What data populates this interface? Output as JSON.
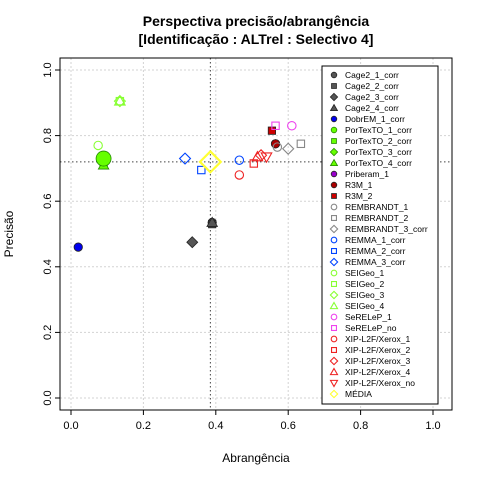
{
  "chart_data": {
    "type": "scatter",
    "title": "Perspectiva precisão/abrangência",
    "subtitle": "[Identificação : ALTrel : Selectivo 4]",
    "xlabel": "Abrangência",
    "ylabel": "Precisão",
    "xlim": [
      0,
      1
    ],
    "ylim": [
      0,
      1
    ],
    "xticks": [
      "0.0",
      "0.2",
      "0.4",
      "0.6",
      "0.8",
      "1.0"
    ],
    "yticks": [
      "0.0",
      "0.2",
      "0.4",
      "0.6",
      "0.8",
      "1.0"
    ],
    "grid": true,
    "legend_position": "right",
    "reference_lines": {
      "x": 0.385,
      "y": 0.72
    },
    "series": [
      {
        "name": "Cage2_1_corr",
        "shape": "circle",
        "color": "#555555",
        "filled": true,
        "x": 0.39,
        "y": 0.535
      },
      {
        "name": "Cage2_2_corr",
        "shape": "square",
        "color": "#555555",
        "filled": true,
        "x": 0.39,
        "y": 0.53
      },
      {
        "name": "Cage2_3_corr",
        "shape": "diamond",
        "color": "#555555",
        "filled": true,
        "x": 0.335,
        "y": 0.475
      },
      {
        "name": "Cage2_4_corr",
        "shape": "triangle",
        "color": "#555555",
        "filled": true,
        "x": 0.39,
        "y": 0.535
      },
      {
        "name": "DobrEM_1_corr",
        "shape": "circle",
        "color": "#0000ee",
        "filled": true,
        "x": 0.02,
        "y": 0.46
      },
      {
        "name": "PorTexTO_1_corr",
        "shape": "circle",
        "color": "#66ff00",
        "filled": true,
        "x": 0.09,
        "y": 0.73,
        "big": true
      },
      {
        "name": "PorTexTO_2_corr",
        "shape": "square",
        "color": "#66ff00",
        "filled": true,
        "x": 0.09,
        "y": 0.71
      },
      {
        "name": "PorTexTO_3_corr",
        "shape": "diamond",
        "color": "#66ff00",
        "filled": true,
        "x": 0.09,
        "y": 0.715
      },
      {
        "name": "PorTexTO_4_corr",
        "shape": "triangle",
        "color": "#66ff00",
        "filled": true,
        "x": 0.09,
        "y": 0.71
      },
      {
        "name": "Priberam_1",
        "shape": "circle",
        "color": "#9900cc",
        "filled": true,
        "x": 0.565,
        "y": 0.775
      },
      {
        "name": "R3M_1",
        "shape": "circle",
        "color": "#aa0000",
        "filled": true,
        "x": 0.565,
        "y": 0.775
      },
      {
        "name": "R3M_2",
        "shape": "square",
        "color": "#cc0000",
        "filled": true,
        "x": 0.555,
        "y": 0.815
      },
      {
        "name": "REMBRANDT_1",
        "shape": "circle",
        "color": "#888888",
        "filled": false,
        "x": 0.57,
        "y": 0.765
      },
      {
        "name": "REMBRANDT_2",
        "shape": "square",
        "color": "#888888",
        "filled": false,
        "x": 0.635,
        "y": 0.775
      },
      {
        "name": "REMBRANDT_3_corr",
        "shape": "diamond",
        "color": "#888888",
        "filled": false,
        "x": 0.6,
        "y": 0.76
      },
      {
        "name": "REMMA_1_corr",
        "shape": "circle",
        "color": "#0044ff",
        "filled": false,
        "x": 0.465,
        "y": 0.725
      },
      {
        "name": "REMMA_2_corr",
        "shape": "square",
        "color": "#0044ff",
        "filled": false,
        "x": 0.36,
        "y": 0.695
      },
      {
        "name": "REMMA_3_corr",
        "shape": "diamond",
        "color": "#0044ff",
        "filled": false,
        "x": 0.315,
        "y": 0.73
      },
      {
        "name": "SEIGeo_1",
        "shape": "circle",
        "color": "#88ff33",
        "filled": false,
        "x": 0.075,
        "y": 0.77
      },
      {
        "name": "SEIGeo_2",
        "shape": "square",
        "color": "#88ff33",
        "filled": false,
        "x": 0.135,
        "y": 0.905
      },
      {
        "name": "SEIGeo_3",
        "shape": "diamond",
        "color": "#88ff33",
        "filled": false,
        "x": 0.135,
        "y": 0.905
      },
      {
        "name": "SEIGeo_4",
        "shape": "triangle",
        "color": "#88ff33",
        "filled": false,
        "x": 0.135,
        "y": 0.905
      },
      {
        "name": "SeRELeP_1",
        "shape": "circle",
        "color": "#ee44ee",
        "filled": false,
        "x": 0.61,
        "y": 0.83
      },
      {
        "name": "SeRELeP_no",
        "shape": "square",
        "color": "#ee44ee",
        "filled": false,
        "x": 0.565,
        "y": 0.83
      },
      {
        "name": "XIP-L2F/Xerox_1",
        "shape": "circle",
        "color": "#ee2222",
        "filled": false,
        "x": 0.465,
        "y": 0.68
      },
      {
        "name": "XIP-L2F/Xerox_2",
        "shape": "square",
        "color": "#ee2222",
        "filled": false,
        "x": 0.505,
        "y": 0.715
      },
      {
        "name": "XIP-L2F/Xerox_3",
        "shape": "diamond",
        "color": "#ee2222",
        "filled": false,
        "x": 0.525,
        "y": 0.74
      },
      {
        "name": "XIP-L2F/Xerox_4",
        "shape": "triangle",
        "color": "#ee2222",
        "filled": false,
        "x": 0.515,
        "y": 0.735
      },
      {
        "name": "XIP-L2F/Xerox_no",
        "shape": "invtriangle",
        "color": "#ee2222",
        "filled": false,
        "x": 0.54,
        "y": 0.735
      },
      {
        "name": "MÉDIA",
        "shape": "diamond",
        "color": "#ffff33",
        "filled": false,
        "x": 0.385,
        "y": 0.72,
        "big": true
      }
    ]
  }
}
